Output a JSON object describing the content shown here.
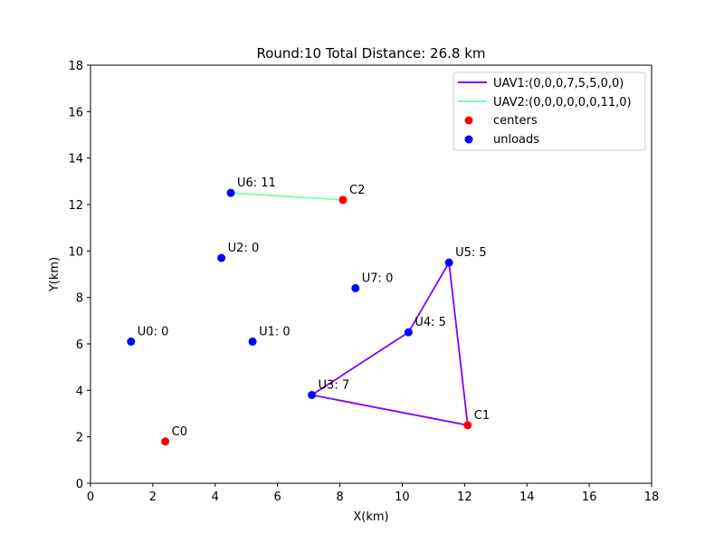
{
  "chart_data": {
    "type": "scatter",
    "title": "Round:10  Total Distance: 26.8 km",
    "xlabel": "X(km)",
    "ylabel": "Y(km)",
    "xlim": [
      0,
      18
    ],
    "ylim": [
      0,
      18
    ],
    "xticks": [
      0,
      2,
      4,
      6,
      8,
      10,
      12,
      14,
      16,
      18
    ],
    "yticks": [
      0,
      2,
      4,
      6,
      8,
      10,
      12,
      14,
      16,
      18
    ],
    "grid": false,
    "legend_position": "top-right",
    "centers": [
      {
        "label": "C0",
        "x": 2.4,
        "y": 1.8
      },
      {
        "label": "C1",
        "x": 12.1,
        "y": 2.5
      },
      {
        "label": "C2",
        "x": 8.1,
        "y": 12.2
      }
    ],
    "unloads": [
      {
        "label": "U0: 0",
        "x": 1.3,
        "y": 6.1
      },
      {
        "label": "U1: 0",
        "x": 5.2,
        "y": 6.1
      },
      {
        "label": "U2: 0",
        "x": 4.2,
        "y": 9.7
      },
      {
        "label": "U3: 7",
        "x": 7.1,
        "y": 3.8
      },
      {
        "label": "U4: 5",
        "x": 10.2,
        "y": 6.5
      },
      {
        "label": "U5: 5",
        "x": 11.5,
        "y": 9.5
      },
      {
        "label": "U6: 11",
        "x": 4.5,
        "y": 12.5
      },
      {
        "label": "U7: 0",
        "x": 8.5,
        "y": 8.4
      }
    ],
    "routes": [
      {
        "name": "UAV1:(0,0,0,7,5,5,0,0)",
        "color": "#8000ff",
        "points": [
          [
            12.1,
            2.5
          ],
          [
            7.1,
            3.8
          ],
          [
            10.2,
            6.5
          ],
          [
            11.5,
            9.5
          ],
          [
            12.1,
            2.5
          ]
        ]
      },
      {
        "name": "UAV2:(0,0,0,0,0,0,11,0)",
        "color": "#80ffb4",
        "points": [
          [
            8.1,
            12.2
          ],
          [
            4.5,
            12.5
          ]
        ]
      }
    ],
    "legend": {
      "centers_label": "centers",
      "unloads_label": "unloads",
      "centers_color": "#ff0000",
      "unloads_color": "#0000ff"
    }
  }
}
